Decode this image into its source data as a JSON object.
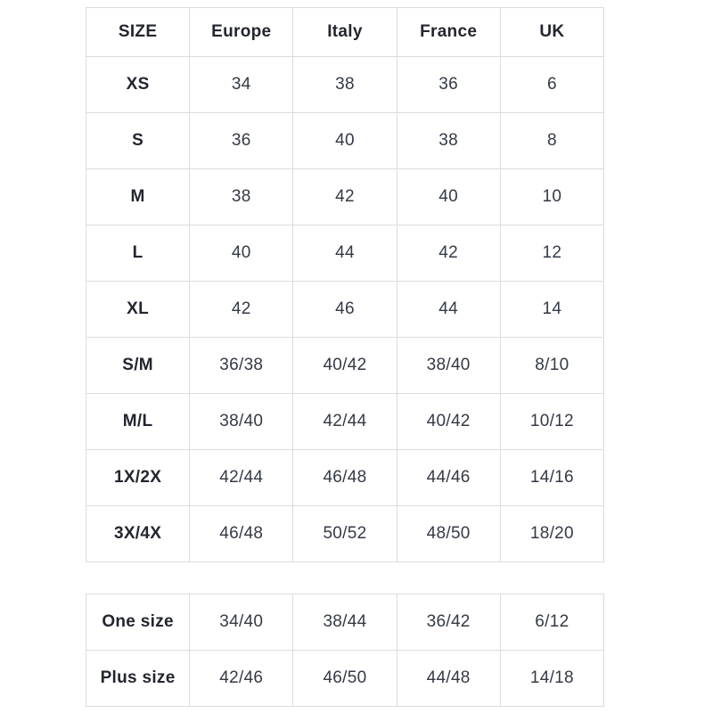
{
  "colors": {
    "background": "#ffffff",
    "border": "#dcdcdc",
    "header_text": "#23262e",
    "value_text": "#343a45"
  },
  "size_table": {
    "headers": [
      "SIZE",
      "Europe",
      "Italy",
      "France",
      "UK"
    ],
    "rows": [
      [
        "XS",
        "34",
        "38",
        "36",
        "6"
      ],
      [
        "S",
        "36",
        "40",
        "38",
        "8"
      ],
      [
        "M",
        "38",
        "42",
        "40",
        "10"
      ],
      [
        "L",
        "40",
        "44",
        "42",
        "12"
      ],
      [
        "XL",
        "42",
        "46",
        "44",
        "14"
      ],
      [
        "S/M",
        "36/38",
        "40/42",
        "38/40",
        "8/10"
      ],
      [
        "M/L",
        "38/40",
        "42/44",
        "40/42",
        "10/12"
      ],
      [
        "1X/2X",
        "42/44",
        "46/48",
        "44/46",
        "14/16"
      ],
      [
        "3X/4X",
        "46/48",
        "50/52",
        "48/50",
        "18/20"
      ]
    ]
  },
  "extra_table": {
    "rows": [
      [
        "One size",
        "34/40",
        "38/44",
        "36/42",
        "6/12"
      ],
      [
        "Plus size",
        "42/46",
        "46/50",
        "44/48",
        "14/18"
      ]
    ]
  }
}
